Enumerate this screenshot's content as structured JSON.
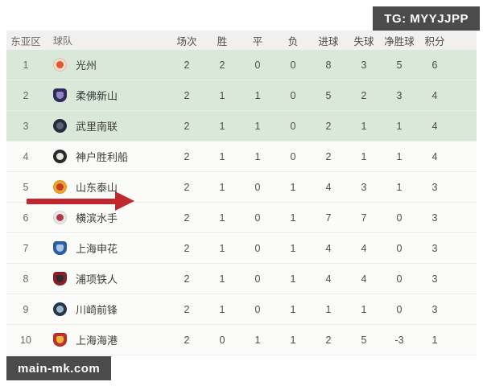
{
  "watermarks": {
    "telegram": "TG: MYYJJPP",
    "site": "main-mk.com"
  },
  "arrow": {
    "color": "#c1272d",
    "points_to_rank": 5
  },
  "colors": {
    "highlight_green": "#d9e8d8",
    "header_bg": "#f1f0ee",
    "badge_bg": "#4b4b4b",
    "arrow_red": "#c1272d"
  },
  "table": {
    "headers": [
      "东亚区",
      "球队",
      "场次",
      "胜",
      "平",
      "负",
      "进球",
      "失球",
      "净胜球",
      "积分"
    ],
    "teams": [
      {
        "rank": "1",
        "name": "光州",
        "highlight": true,
        "badge": {
          "shape": "circle",
          "color": "#f3ddc9",
          "accent": "#e2572f"
        },
        "stats": [
          "2",
          "2",
          "0",
          "0",
          "8",
          "3",
          "5",
          "6"
        ]
      },
      {
        "rank": "2",
        "name": "柔佛新山",
        "highlight": true,
        "badge": {
          "shape": "shield",
          "color": "#332a5c",
          "accent": "#8f86c2"
        },
        "stats": [
          "2",
          "1",
          "1",
          "0",
          "5",
          "2",
          "3",
          "4"
        ]
      },
      {
        "rank": "3",
        "name": "武里南联",
        "highlight": true,
        "badge": {
          "shape": "circle",
          "color": "#272c3e",
          "accent": "#5d6478"
        },
        "stats": [
          "2",
          "1",
          "1",
          "0",
          "2",
          "1",
          "1",
          "4"
        ]
      },
      {
        "rank": "4",
        "name": "神户胜利船",
        "highlight": false,
        "badge": {
          "shape": "circle",
          "color": "#2b2b2b",
          "accent": "#e8e6e2"
        },
        "stats": [
          "2",
          "1",
          "1",
          "0",
          "2",
          "1",
          "1",
          "4"
        ]
      },
      {
        "rank": "5",
        "name": "山东泰山",
        "highlight": false,
        "badge": {
          "shape": "circle",
          "color": "#eda52b",
          "accent": "#c43b2a"
        },
        "stats": [
          "2",
          "1",
          "0",
          "1",
          "4",
          "3",
          "1",
          "3"
        ]
      },
      {
        "rank": "6",
        "name": "横滨水手",
        "highlight": false,
        "badge": {
          "shape": "circle",
          "color": "#e8e8e8",
          "accent": "#b23a48"
        },
        "stats": [
          "2",
          "1",
          "0",
          "1",
          "7",
          "7",
          "0",
          "3"
        ]
      },
      {
        "rank": "7",
        "name": "上海申花",
        "highlight": false,
        "badge": {
          "shape": "shield",
          "color": "#2e5fa3",
          "accent": "#a9c6e8"
        },
        "stats": [
          "2",
          "1",
          "0",
          "1",
          "4",
          "4",
          "0",
          "3"
        ]
      },
      {
        "rank": "8",
        "name": "浦项铁人",
        "highlight": false,
        "badge": {
          "shape": "shield",
          "color": "#8c1f28",
          "accent": "#2c2c2c"
        },
        "stats": [
          "2",
          "1",
          "0",
          "1",
          "4",
          "4",
          "0",
          "3"
        ]
      },
      {
        "rank": "9",
        "name": "川崎前锋",
        "highlight": false,
        "badge": {
          "shape": "circle",
          "color": "#24394d",
          "accent": "#9fb6c9"
        },
        "stats": [
          "2",
          "1",
          "0",
          "1",
          "1",
          "1",
          "0",
          "3"
        ]
      },
      {
        "rank": "10",
        "name": "上海海港",
        "highlight": false,
        "badge": {
          "shape": "shield",
          "color": "#c03028",
          "accent": "#e8b83a"
        },
        "stats": [
          "2",
          "0",
          "1",
          "1",
          "2",
          "5",
          "-3",
          "1"
        ]
      }
    ]
  }
}
